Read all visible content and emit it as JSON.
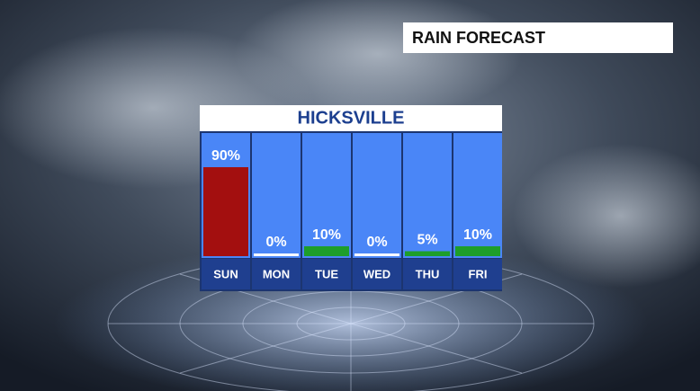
{
  "header": "RAIN FORECAST",
  "chart_data": {
    "type": "bar",
    "title": "HICKSVILLE",
    "categories": [
      "SUN",
      "MON",
      "TUE",
      "WED",
      "THU",
      "FRI"
    ],
    "values": [
      90,
      0,
      10,
      0,
      5,
      10
    ],
    "value_labels": [
      "90%",
      "0%",
      "10%",
      "0%",
      "5%",
      "10%"
    ],
    "colors": [
      "#a30f0f",
      "#1e9e2a",
      "#1e9e2a",
      "#1e9e2a",
      "#1e9e2a",
      "#1e9e2a"
    ],
    "zero_color": "#ffffff"
  }
}
